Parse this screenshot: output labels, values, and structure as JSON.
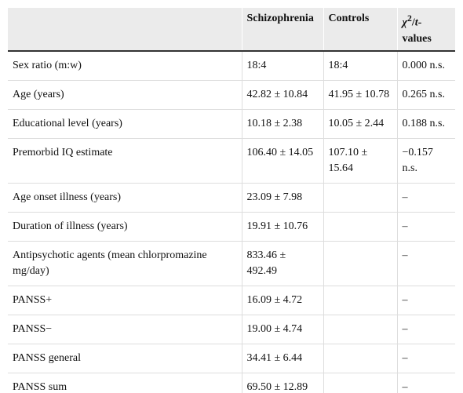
{
  "table": {
    "header": [
      "",
      "Schizophrenia",
      "Controls",
      {
        "parts": [
          "χ",
          "2",
          "/",
          "t",
          "-values"
        ]
      }
    ],
    "rows": [
      [
        "Sex ratio (m:w)",
        "18:4",
        "18:4",
        "0.000 n.s."
      ],
      [
        "Age (years)",
        "42.82 ± 10.84",
        "41.95 ± 10.78",
        "0.265 n.s."
      ],
      [
        "Educational level (years)",
        "10.18 ± 2.38",
        "10.05 ± 2.44",
        "0.188 n.s."
      ],
      [
        "Premorbid IQ estimate",
        "106.40 ± 14.05",
        "107.10 ± 15.64",
        "−0.157 n.s."
      ],
      [
        "Age onset illness (years)",
        "23.09 ± 7.98",
        null,
        "–"
      ],
      [
        "Duration of illness (years)",
        "19.91 ± 10.76",
        null,
        "–"
      ],
      [
        "Antipsychotic agents (mean chlorpromazine mg/day)",
        "833.46 ± 492.49",
        null,
        "–"
      ],
      [
        "PANSS+",
        "16.09 ± 4.72",
        null,
        "–"
      ],
      [
        "PANSS−",
        "19.00 ± 4.74",
        null,
        "–"
      ],
      [
        "PANSS general",
        "34.41 ± 6.44",
        null,
        "–"
      ],
      [
        "PANSS sum",
        "69.50 ± 12.89",
        null,
        "–"
      ]
    ]
  }
}
